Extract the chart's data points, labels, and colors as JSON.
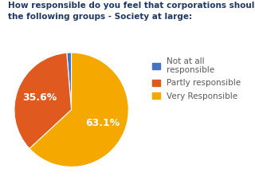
{
  "title": "How responsible do you feel that corporations should be toward\nthe following groups - Society at large:",
  "slices": [
    1.3,
    35.6,
    63.1
  ],
  "labels": [
    "Not at all\nresponsible",
    "Partly responsible",
    "Very Responsible"
  ],
  "colors": [
    "#4472c4",
    "#e05a20",
    "#f5a800"
  ],
  "title_fontsize": 7.5,
  "legend_fontsize": 7.5,
  "pct_fontsize": 9,
  "startangle": 90,
  "background_color": "#ffffff",
  "title_color": "#1f3864",
  "legend_text_color": "#595959"
}
